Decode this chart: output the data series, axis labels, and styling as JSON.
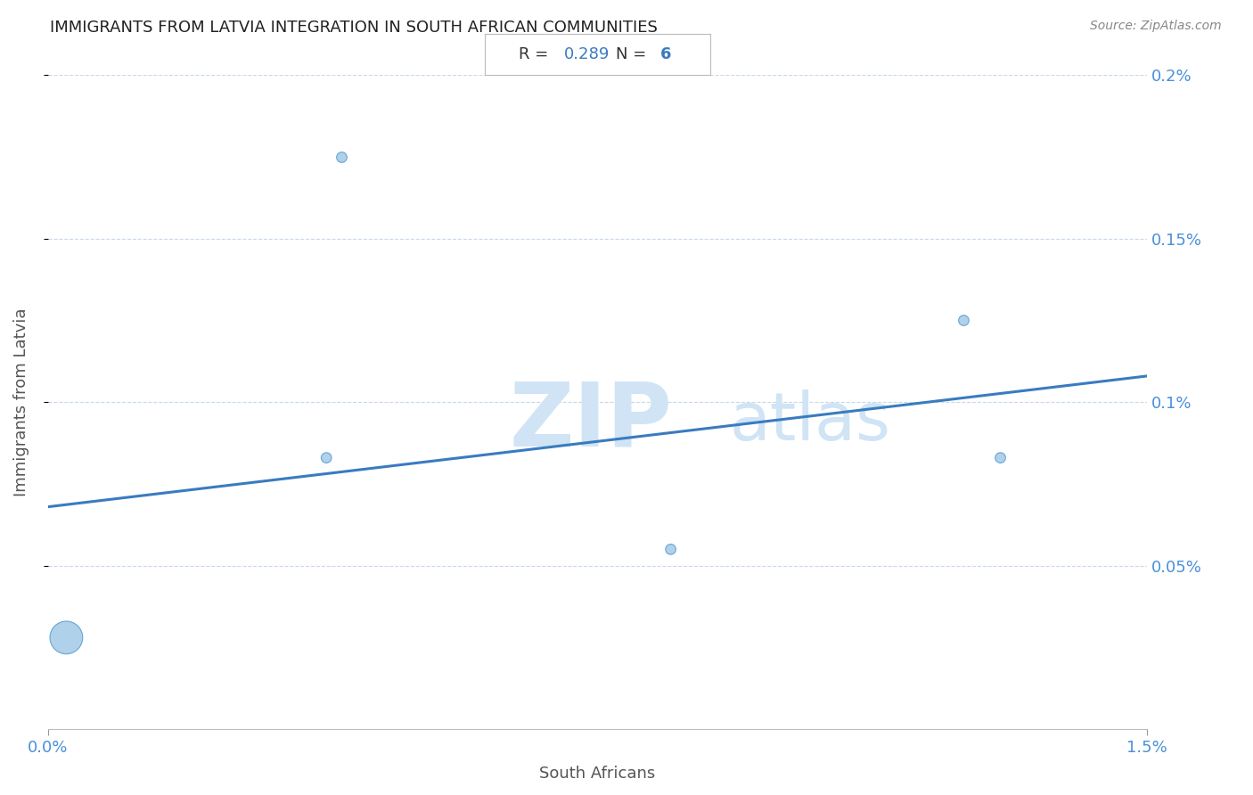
{
  "title": "IMMIGRANTS FROM LATVIA INTEGRATION IN SOUTH AFRICAN COMMUNITIES",
  "source": "Source: ZipAtlas.com",
  "xlabel": "South Africans",
  "ylabel": "Immigrants from Latvia",
  "R_value": "0.289",
  "N_value": "6",
  "xlim": [
    0.0,
    0.015
  ],
  "ylim": [
    0.0,
    0.002
  ],
  "x_ticks": [
    0.0,
    0.015
  ],
  "x_tick_labels": [
    "0.0%",
    "1.5%"
  ],
  "y_tick_labels": [
    "0.05%",
    "0.1%",
    "0.15%",
    "0.2%"
  ],
  "y_tick_values": [
    0.0005,
    0.001,
    0.0015,
    0.002
  ],
  "scatter_x": [
    0.00025,
    0.0038,
    0.0085,
    0.0125,
    0.013
  ],
  "scatter_y": [
    0.00028,
    0.00083,
    0.00055,
    0.00125,
    0.00083
  ],
  "scatter_sizes": [
    700,
    70,
    70,
    70,
    70
  ],
  "scatter_x2": [
    0.004
  ],
  "scatter_y2": [
    0.00175
  ],
  "scatter_sizes2": [
    70
  ],
  "scatter_color": "#a8cce8",
  "scatter_edge_color": "#5a9fd4",
  "line_color": "#3a7bbf",
  "line_x": [
    0.0,
    0.015
  ],
  "line_y_start": 0.00068,
  "line_y_end": 0.00108,
  "grid_color": "#c8d8ea",
  "background_color": "#ffffff",
  "title_color": "#222222",
  "title_fontsize": 13,
  "label_color": "#4a90d9",
  "watermark_zip": "ZIP",
  "watermark_atlas": "atlas",
  "watermark_color": "#d0e4f5",
  "watermark_fontsize": 72
}
